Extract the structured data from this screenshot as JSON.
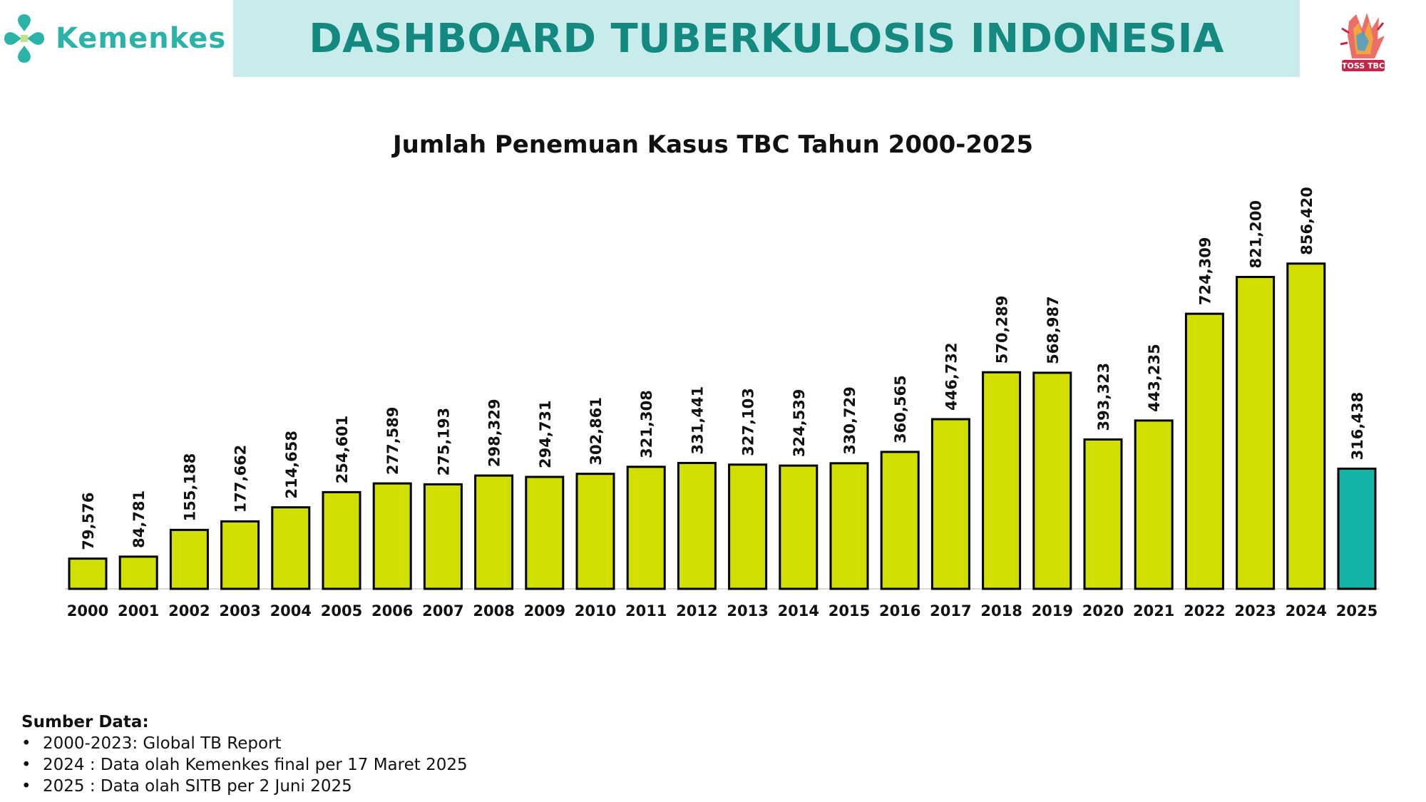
{
  "header": {
    "brand": "Kemenkes",
    "title": "DASHBOARD TUBERKULOSIS INDONESIA",
    "brand_color": "#2bb3a8",
    "band_color": "#c8ecec",
    "title_color": "#14897f",
    "right_logo_text": "TOSS TBC"
  },
  "chart_data": {
    "type": "bar",
    "title": "Jumlah Penemuan Kasus TBC Tahun 2000-2025",
    "xlabel": "",
    "ylabel": "",
    "categories": [
      "2000",
      "2001",
      "2002",
      "2003",
      "2004",
      "2005",
      "2006",
      "2007",
      "2008",
      "2009",
      "2010",
      "2011",
      "2012",
      "2013",
      "2014",
      "2015",
      "2016",
      "2017",
      "2018",
      "2019",
      "2020",
      "2021",
      "2022",
      "2023",
      "2024",
      "2025"
    ],
    "values": [
      79576,
      84781,
      155188,
      177662,
      214658,
      254601,
      277589,
      275193,
      298329,
      294731,
      302861,
      321308,
      331441,
      327103,
      324539,
      330729,
      360565,
      446732,
      570289,
      568987,
      393323,
      443235,
      724309,
      821200,
      856420,
      316438
    ],
    "value_labels": [
      "79,576",
      "84,781",
      "155,188",
      "177,662",
      "214,658",
      "254,601",
      "277,589",
      "275,193",
      "298,329",
      "294,731",
      "302,861",
      "321,308",
      "331,441",
      "327,103",
      "324,539",
      "330,729",
      "360,565",
      "446,732",
      "570,289",
      "568,987",
      "393,323",
      "443,235",
      "724,309",
      "821,200",
      "856,420",
      "316,438"
    ],
    "colors": {
      "default": "#d0de00",
      "highlight": "#14b3a8",
      "highlight_category": "2025"
    },
    "ylim": [
      0,
      1100000
    ],
    "grid": false,
    "legend": "none"
  },
  "sources": {
    "title": "Sumber Data:",
    "items": [
      "2000-2023: Global TB Report",
      "2024 : Data olah Kemenkes final per 17 Maret 2025",
      "2025 : Data olah SITB per 2 Juni 2025"
    ]
  }
}
